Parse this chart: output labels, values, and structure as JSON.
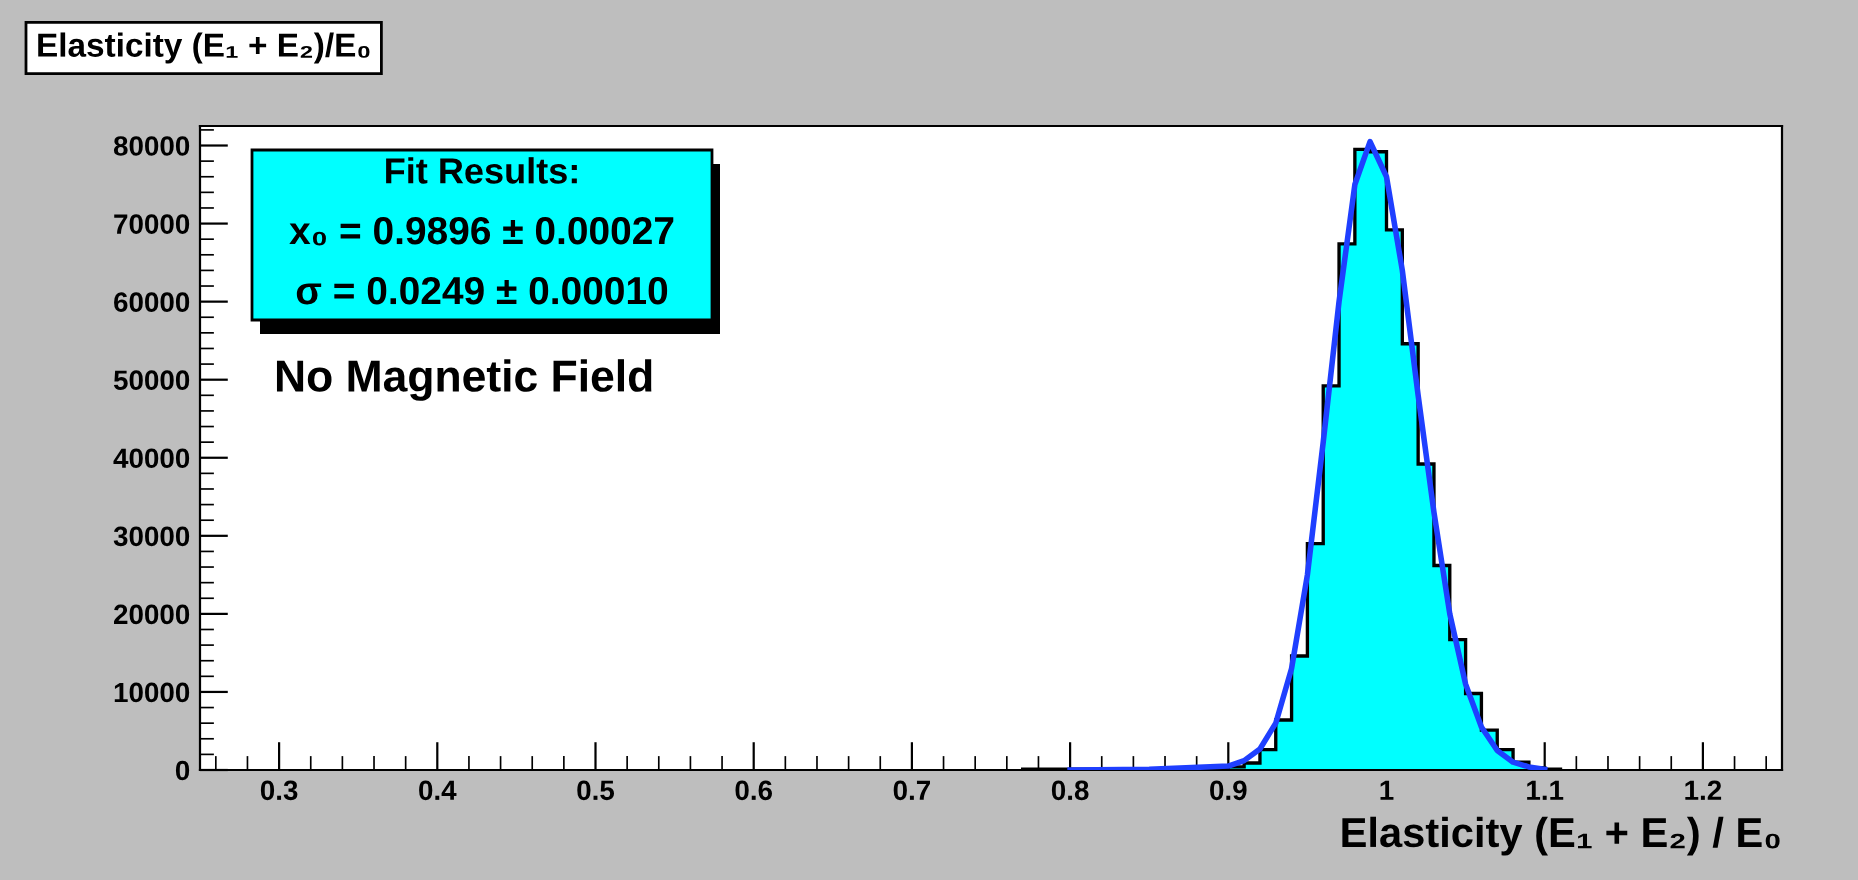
{
  "chart_data": {
    "type": "histogram",
    "title": "Elasticity (E₁ + E₂)/E₀",
    "xlabel": "Elasticity (E₁ + E₂) / E₀",
    "series": [
      {
        "color": "#00ffff",
        "bins": [
          0.77,
          0.78,
          0.79,
          0.8,
          0.81,
          0.82,
          0.83,
          0.84,
          0.85,
          0.86,
          0.87,
          0.88,
          0.89,
          0.9,
          0.91,
          0.92,
          0.93,
          0.94,
          0.95,
          0.96,
          0.97,
          0.98,
          0.99,
          1.0,
          1.01,
          1.02,
          1.03,
          1.04,
          1.05,
          1.06,
          1.07,
          1.08,
          1.09,
          1.1,
          1.11
        ],
        "values": [
          100,
          100,
          100,
          100,
          100,
          100,
          100,
          100,
          100,
          100,
          100,
          100,
          200,
          400,
          900,
          2600,
          6400,
          14600,
          29000,
          49200,
          67400,
          79500,
          79200,
          69200,
          54600,
          39200,
          26200,
          16700,
          9800,
          5100,
          2600,
          1000,
          300,
          100
        ]
      },
      {
        "type": "line",
        "color": "#1f3fff",
        "x": [
          0.8,
          0.85,
          0.9,
          0.91,
          0.92,
          0.93,
          0.94,
          0.95,
          0.96,
          0.97,
          0.98,
          0.9896,
          1.0,
          1.01,
          1.02,
          1.03,
          1.04,
          1.05,
          1.06,
          1.07,
          1.08,
          1.09,
          1.1
        ],
        "values": [
          0,
          100,
          500,
          1200,
          2700,
          6000,
          13000,
          25000,
          42000,
          60000,
          75000,
          80500,
          76000,
          64000,
          48000,
          33000,
          20000,
          11000,
          5500,
          2500,
          1000,
          400,
          100
        ]
      }
    ],
    "xlim": [
      0.25,
      1.25
    ],
    "xticks": [
      0.3,
      0.4,
      0.5,
      0.6,
      0.7,
      0.8,
      0.9,
      1,
      1.1,
      1.2
    ],
    "ylim": [
      0,
      82500
    ],
    "yticks": [
      0,
      10000,
      20000,
      30000,
      40000,
      50000,
      60000,
      70000,
      80000
    ],
    "annotations": [
      "Fit Results:",
      "x₀ = 0.9896 ± 0.00027",
      "σ = 0.0249 ± 0.00010",
      "No Magnetic Field"
    ],
    "grid": false,
    "legend": false
  }
}
